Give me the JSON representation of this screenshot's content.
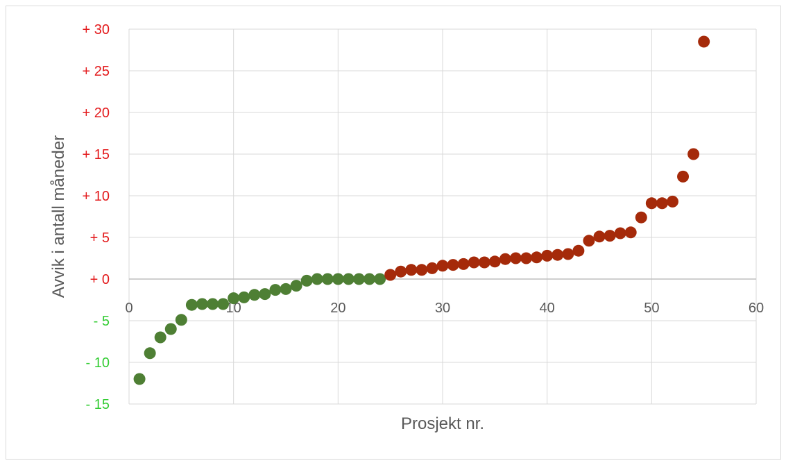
{
  "chart_data": {
    "type": "scatter",
    "xlabel": "Prosjekt nr.",
    "ylabel": "Avvik i antall måneder",
    "xlim": [
      0,
      60
    ],
    "ylim": [
      -15,
      30
    ],
    "grid": true,
    "x_ticks": [
      {
        "value": 0,
        "label": "0"
      },
      {
        "value": 10,
        "label": "10"
      },
      {
        "value": 20,
        "label": "20"
      },
      {
        "value": 30,
        "label": "30"
      },
      {
        "value": 40,
        "label": "40"
      },
      {
        "value": 50,
        "label": "50"
      },
      {
        "value": 60,
        "label": "60"
      }
    ],
    "y_ticks": [
      {
        "value": 30,
        "label": "+ 30",
        "color": "#e31a1c"
      },
      {
        "value": 25,
        "label": "+ 25",
        "color": "#e31a1c"
      },
      {
        "value": 20,
        "label": "+ 20",
        "color": "#e31a1c"
      },
      {
        "value": 15,
        "label": "+ 15",
        "color": "#e31a1c"
      },
      {
        "value": 10,
        "label": "+ 10",
        "color": "#e31a1c"
      },
      {
        "value": 5,
        "label": "+ 5",
        "color": "#e31a1c"
      },
      {
        "value": 0,
        "label": "+ 0",
        "color": "#e31a1c"
      },
      {
        "value": -5,
        "label": "- 5",
        "color": "#33cc33"
      },
      {
        "value": -10,
        "label": "- 10",
        "color": "#33cc33"
      },
      {
        "value": -15,
        "label": "- 15",
        "color": "#33cc33"
      }
    ],
    "series": [
      {
        "color": "#4e7f34",
        "points": [
          [
            1,
            -12
          ],
          [
            2,
            -8.9
          ],
          [
            3,
            -7
          ],
          [
            4,
            -6
          ],
          [
            5,
            -4.9
          ],
          [
            6,
            -3.1
          ],
          [
            7,
            -3
          ],
          [
            8,
            -3
          ],
          [
            9,
            -3
          ],
          [
            10,
            -2.3
          ],
          [
            11,
            -2.2
          ],
          [
            12,
            -1.9
          ],
          [
            13,
            -1.8
          ],
          [
            14,
            -1.3
          ],
          [
            15,
            -1.2
          ],
          [
            16,
            -0.8
          ],
          [
            17,
            -0.2
          ],
          [
            18,
            0
          ],
          [
            19,
            0
          ],
          [
            20,
            0
          ],
          [
            21,
            0
          ],
          [
            22,
            0
          ],
          [
            23,
            0
          ],
          [
            24,
            0
          ]
        ]
      },
      {
        "color": "#a52a0a",
        "points": [
          [
            25,
            0.5
          ],
          [
            26,
            0.9
          ],
          [
            27,
            1.1
          ],
          [
            28,
            1.1
          ],
          [
            29,
            1.3
          ],
          [
            30,
            1.6
          ],
          [
            31,
            1.7
          ],
          [
            32,
            1.8
          ],
          [
            33,
            2
          ],
          [
            34,
            2
          ],
          [
            35,
            2.1
          ],
          [
            36,
            2.4
          ],
          [
            37,
            2.5
          ],
          [
            38,
            2.5
          ],
          [
            39,
            2.6
          ],
          [
            40,
            2.8
          ],
          [
            41,
            2.9
          ],
          [
            42,
            3
          ],
          [
            43,
            3.4
          ],
          [
            44,
            4.6
          ],
          [
            45,
            5.1
          ],
          [
            46,
            5.2
          ],
          [
            47,
            5.5
          ],
          [
            48,
            5.6
          ],
          [
            49,
            7.4
          ],
          [
            50,
            9.1
          ],
          [
            51,
            9.1
          ],
          [
            52,
            9.3
          ],
          [
            53,
            12.3
          ],
          [
            54,
            15
          ],
          [
            55,
            28.5
          ]
        ]
      }
    ]
  }
}
